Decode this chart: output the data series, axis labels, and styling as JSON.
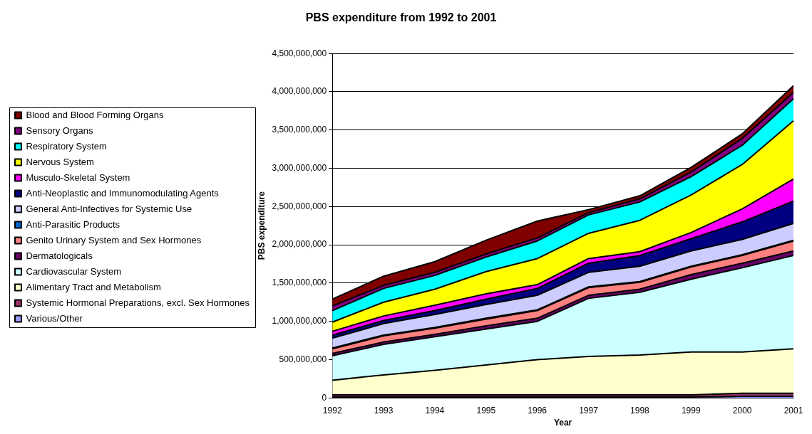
{
  "chart_data": {
    "type": "area",
    "title": "PBS expenditure from 1992 to 2001",
    "xlabel": "Year",
    "ylabel": "PBS expenditure",
    "stacked": true,
    "grid": "y",
    "legend": "left",
    "categories": [
      "1992",
      "1993",
      "1994",
      "1995",
      "1996",
      "1997",
      "1998",
      "1999",
      "2000",
      "2001"
    ],
    "ylim": [
      0,
      4500000000
    ],
    "yticks": [
      {
        "value": 0,
        "label": "0"
      },
      {
        "value": 500000000,
        "label": "500,000,000"
      },
      {
        "value": 1000000000,
        "label": "1,000,000,000"
      },
      {
        "value": 1500000000,
        "label": "1,500,000,000"
      },
      {
        "value": 2000000000,
        "label": "2,000,000,000"
      },
      {
        "value": 2500000000,
        "label": "2,500,000,000"
      },
      {
        "value": 3000000000,
        "label": "3,000,000,000"
      },
      {
        "value": 3500000000,
        "label": "3,500,000,000"
      },
      {
        "value": 4000000000,
        "label": "4,000,000,000"
      },
      {
        "value": 4500000000,
        "label": "4,500,000,000"
      }
    ],
    "series": [
      {
        "name": "Various/Other",
        "color": "#9999ff",
        "values": [
          10000000,
          10000000,
          10000000,
          10000000,
          10000000,
          10000000,
          10000000,
          10000000,
          20000000,
          20000000
        ]
      },
      {
        "name": "Systemic Hormonal Preparations, excl. Sex Hormones",
        "color": "#993366",
        "values": [
          30000000,
          30000000,
          30000000,
          30000000,
          30000000,
          30000000,
          30000000,
          30000000,
          40000000,
          40000000
        ]
      },
      {
        "name": "Alimentary Tract and Metabolism",
        "color": "#ffffcc",
        "values": [
          190000000,
          260000000,
          320000000,
          390000000,
          460000000,
          500000000,
          520000000,
          560000000,
          540000000,
          580000000
        ]
      },
      {
        "name": "Cardiovascular System",
        "color": "#ccffff",
        "values": [
          320000000,
          400000000,
          440000000,
          470000000,
          500000000,
          760000000,
          820000000,
          950000000,
          1100000000,
          1220000000
        ]
      },
      {
        "name": "Dermatologicals",
        "color": "#660066",
        "values": [
          30000000,
          30000000,
          30000000,
          40000000,
          40000000,
          40000000,
          40000000,
          60000000,
          60000000,
          60000000
        ]
      },
      {
        "name": "Genito Urinary System and Sex Hormones",
        "color": "#ff8080",
        "values": [
          60000000,
          80000000,
          80000000,
          90000000,
          100000000,
          100000000,
          90000000,
          100000000,
          100000000,
          130000000
        ]
      },
      {
        "name": "Anti-Parasitic Products",
        "color": "#0066cc",
        "values": [
          10000000,
          10000000,
          10000000,
          10000000,
          10000000,
          10000000,
          10000000,
          10000000,
          10000000,
          10000000
        ]
      },
      {
        "name": "General Anti-Infectives for Systemic Use",
        "color": "#ccccff",
        "values": [
          130000000,
          150000000,
          170000000,
          180000000,
          190000000,
          190000000,
          200000000,
          200000000,
          200000000,
          220000000
        ]
      },
      {
        "name": "Anti-Neoplastic and Immunomodulating Agents",
        "color": "#000080",
        "values": [
          40000000,
          40000000,
          50000000,
          70000000,
          90000000,
          120000000,
          140000000,
          160000000,
          230000000,
          290000000
        ]
      },
      {
        "name": "Musculo-Skeletal System",
        "color": "#ff00ff",
        "values": [
          50000000,
          60000000,
          70000000,
          70000000,
          50000000,
          60000000,
          50000000,
          80000000,
          170000000,
          290000000
        ]
      },
      {
        "name": "Nervous System",
        "color": "#ffff00",
        "values": [
          120000000,
          180000000,
          210000000,
          290000000,
          340000000,
          330000000,
          410000000,
          490000000,
          580000000,
          760000000
        ]
      },
      {
        "name": "Respiratory System",
        "color": "#00ffff",
        "values": [
          150000000,
          180000000,
          180000000,
          190000000,
          230000000,
          240000000,
          240000000,
          240000000,
          250000000,
          290000000
        ]
      },
      {
        "name": "Sensory Organs",
        "color": "#800080",
        "values": [
          60000000,
          40000000,
          40000000,
          40000000,
          40000000,
          30000000,
          40000000,
          60000000,
          90000000,
          80000000
        ]
      },
      {
        "name": "Blood and Blood Forming Organs",
        "color": "#800000",
        "values": [
          90000000,
          120000000,
          140000000,
          180000000,
          220000000,
          40000000,
          40000000,
          60000000,
          60000000,
          90000000
        ]
      }
    ]
  }
}
